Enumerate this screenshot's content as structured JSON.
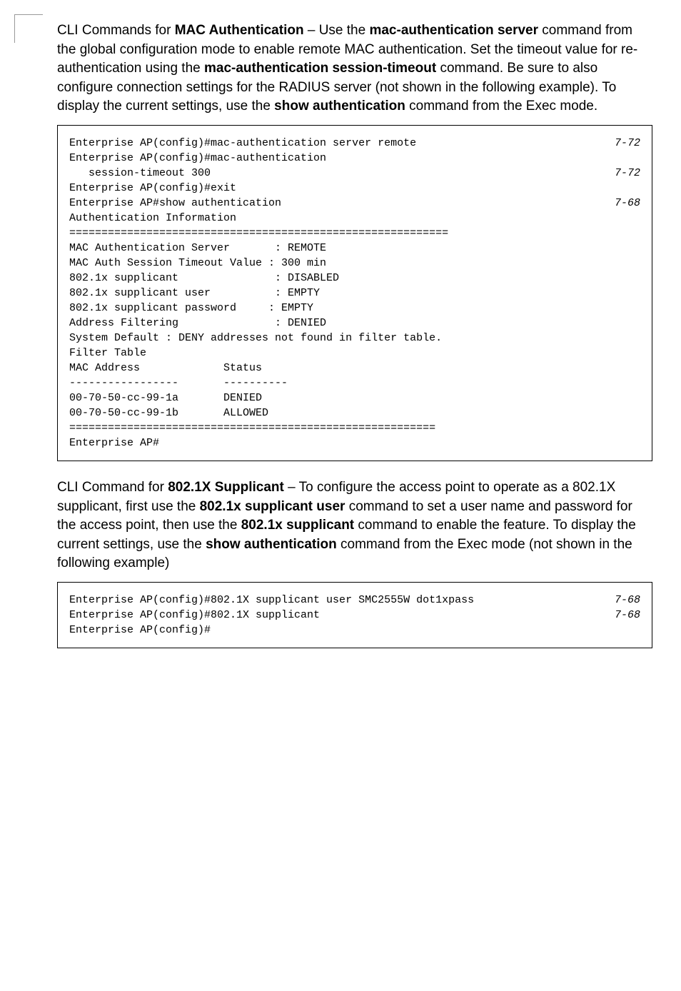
{
  "para1": {
    "line1a": "CLI Commands for ",
    "line1b": "MAC Authentication",
    "line1c": " – Use the ",
    "line1d": "mac-authentication server",
    "line1e": " command from the global configuration mode to enable remote MAC authentication. Set the timeout value for re-authentication using the ",
    "line1f": "mac-authentication session-timeout",
    "line1g": " command. Be sure to also configure connection settings for the RADIUS server (not shown in the following example). To display the current settings, use the ",
    "line1h": "show authentication",
    "line1i": " command from the Exec  mode."
  },
  "codebox1": {
    "lines": [
      {
        "text": "Enterprise AP(config)#mac-authentication server remote",
        "ref": "7-72"
      },
      {
        "text": "Enterprise AP(config)#mac-authentication",
        "ref": ""
      },
      {
        "text": "   session-timeout 300",
        "ref": "7-72"
      },
      {
        "text": "Enterprise AP(config)#exit",
        "ref": ""
      },
      {
        "text": "Enterprise AP#show authentication",
        "ref": "7-68"
      },
      {
        "text": "",
        "ref": ""
      },
      {
        "text": "Authentication Information",
        "ref": ""
      },
      {
        "text": "===========================================================",
        "ref": ""
      },
      {
        "text": "MAC Authentication Server       : REMOTE",
        "ref": ""
      },
      {
        "text": "MAC Auth Session Timeout Value : 300 min",
        "ref": ""
      },
      {
        "text": "802.1x supplicant               : DISABLED",
        "ref": ""
      },
      {
        "text": "802.1x supplicant user          : EMPTY",
        "ref": ""
      },
      {
        "text": "802.1x supplicant password     : EMPTY",
        "ref": ""
      },
      {
        "text": "Address Filtering               : DENIED",
        "ref": ""
      },
      {
        "text": "",
        "ref": ""
      },
      {
        "text": "System Default : DENY addresses not found in filter table.",
        "ref": ""
      },
      {
        "text": "Filter Table",
        "ref": ""
      },
      {
        "text": "",
        "ref": ""
      },
      {
        "text": "MAC Address             Status",
        "ref": ""
      },
      {
        "text": "-----------------       ----------",
        "ref": ""
      },
      {
        "text": "00-70-50-cc-99-1a       DENIED",
        "ref": ""
      },
      {
        "text": "00-70-50-cc-99-1b       ALLOWED",
        "ref": ""
      },
      {
        "text": "=========================================================",
        "ref": ""
      },
      {
        "text": "Enterprise AP#",
        "ref": ""
      }
    ]
  },
  "para2": {
    "line1a": "CLI Command for ",
    "line1b": "802.1X Supplicant",
    "line1c": " – To configure the access point to operate as a 802.1X supplicant, first use the ",
    "line1d": "802.1x supplicant user",
    "line1e": " command to set a user name and password for the access point, then use the ",
    "line1f": "802.1x supplicant",
    "line1g": " command to enable the feature. To display the current settings, use the ",
    "line1h": "show authentication",
    "line1i": " command from the Exec mode (not shown in the following example)"
  },
  "codebox2": {
    "lines": [
      {
        "text": "Enterprise AP(config)#802.1X supplicant user SMC2555W dot1xpass",
        "ref": "7-68"
      },
      {
        "text": "Enterprise AP(config)#802.1X supplicant",
        "ref": "7-68"
      },
      {
        "text": "Enterprise AP(config)#",
        "ref": ""
      }
    ]
  },
  "style": {
    "body_width": 954,
    "body_bg": "#ffffff",
    "text_color": "#000000",
    "body_fontsize": 19,
    "code_fontsize": 15,
    "code_fontfamily": "Courier New",
    "border_color": "#000000"
  }
}
